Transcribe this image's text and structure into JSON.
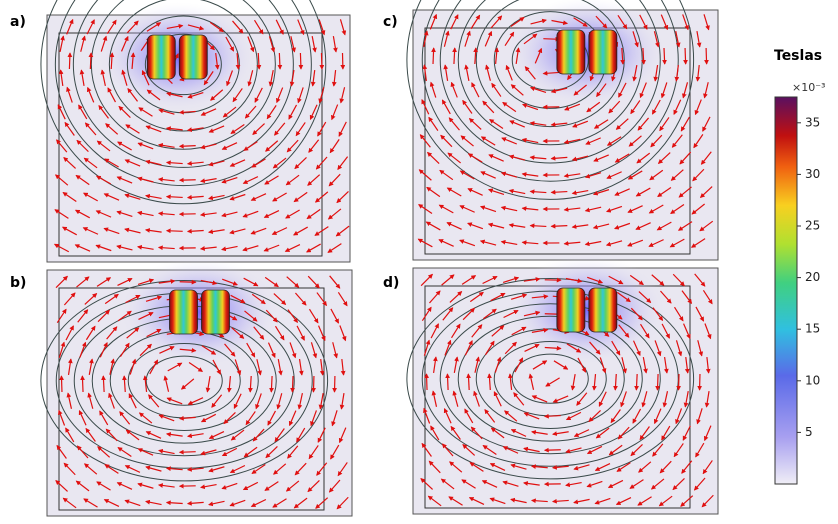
{
  "panels": [
    {
      "label": "a)"
    },
    {
      "label": "b)"
    },
    {
      "label": "c)"
    },
    {
      "label": "d)"
    }
  ],
  "colorbar": {
    "title": "Teslas",
    "multiplier": "×10⁻³",
    "lim": [
      0,
      37.5
    ],
    "ticks": [
      5,
      10,
      15,
      20,
      25,
      30,
      35
    ]
  }
}
